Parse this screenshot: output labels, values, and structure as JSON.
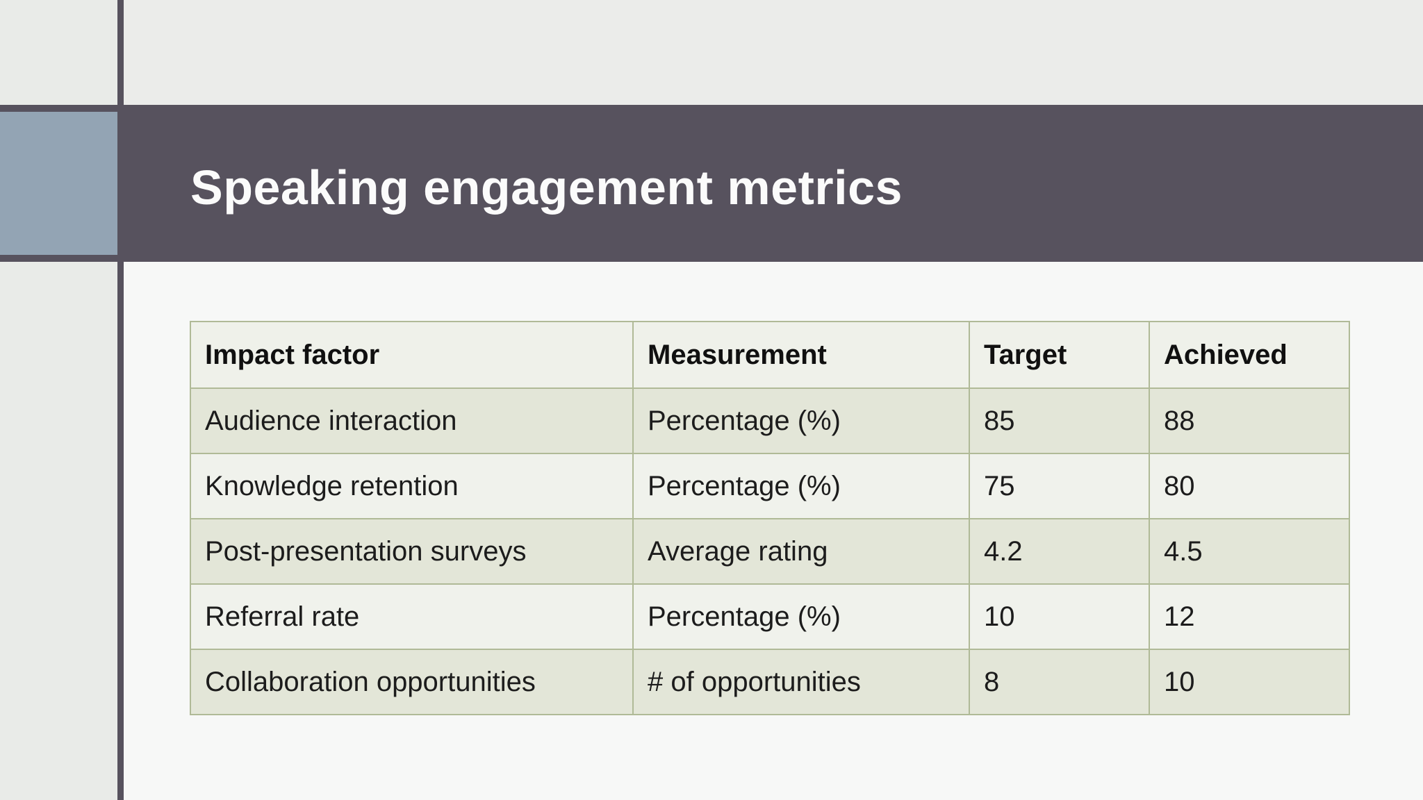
{
  "slide": {
    "title": "Speaking engagement metrics"
  },
  "table": {
    "headers": [
      "Impact factor",
      "Measurement",
      "Target",
      "Achieved"
    ],
    "rows": [
      [
        "Audience interaction",
        "Percentage (%)",
        "85",
        "88"
      ],
      [
        "Knowledge retention",
        "Percentage (%)",
        "75",
        "80"
      ],
      [
        "Post-presentation surveys",
        "Average rating",
        "4.2",
        "4.5"
      ],
      [
        "Referral rate",
        "Percentage (%)",
        "10",
        "12"
      ],
      [
        "Collaboration opportunities",
        "# of opportunities",
        "8",
        "10"
      ]
    ]
  },
  "colors": {
    "band": "#57525e",
    "accent_square": "#93a4b4",
    "table_border": "#b0ba97",
    "row_odd": "#e3e6d8",
    "row_even": "#f0f2ec",
    "header_row": "#eff1ea",
    "title_text": "#fbfbfb"
  }
}
